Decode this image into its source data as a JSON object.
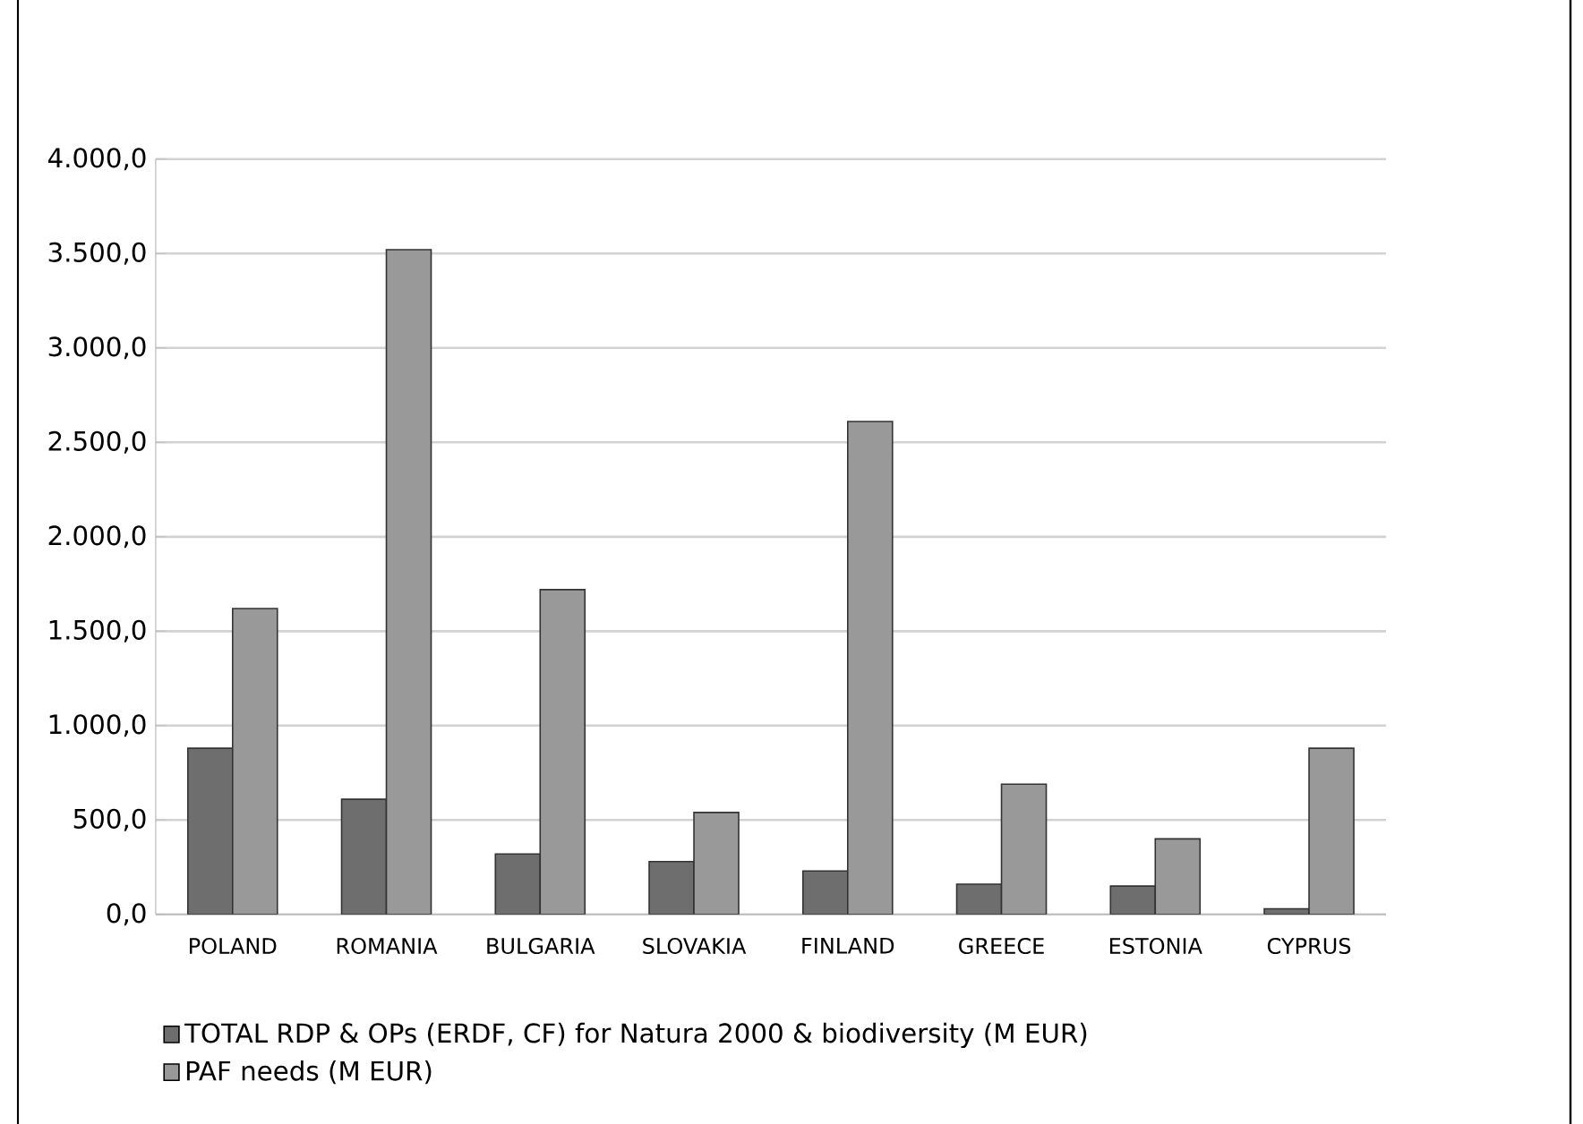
{
  "chart_data": {
    "type": "bar",
    "categories": [
      "POLAND",
      "ROMANIA",
      "BULGARIA",
      "SLOVAKIA",
      "FINLAND",
      "GREECE",
      "ESTONIA",
      "CYPRUS"
    ],
    "series": [
      {
        "name": "TOTAL RDP & OPs (ERDF, CF) for Natura 2000 & biodiversity (M EUR)",
        "color": "#6e6e6e",
        "values": [
          880,
          610,
          320,
          280,
          230,
          160,
          150,
          30
        ]
      },
      {
        "name": "PAF needs (M EUR)",
        "color": "#999999",
        "values": [
          1620,
          3520,
          1720,
          540,
          2610,
          690,
          400,
          880
        ]
      }
    ],
    "ylim": [
      0,
      4000
    ],
    "yticks": [
      {
        "value": 0,
        "label": "0,0"
      },
      {
        "value": 500,
        "label": "500,0"
      },
      {
        "value": 1000,
        "label": "1.000,0"
      },
      {
        "value": 1500,
        "label": "1.500,0"
      },
      {
        "value": 2000,
        "label": "2.000,0"
      },
      {
        "value": 2500,
        "label": "2.500,0"
      },
      {
        "value": 3000,
        "label": "3.000,0"
      },
      {
        "value": 3500,
        "label": "3.500,0"
      },
      {
        "value": 4000,
        "label": "4.000,0"
      }
    ],
    "grid": "y",
    "legend": "bottom"
  }
}
